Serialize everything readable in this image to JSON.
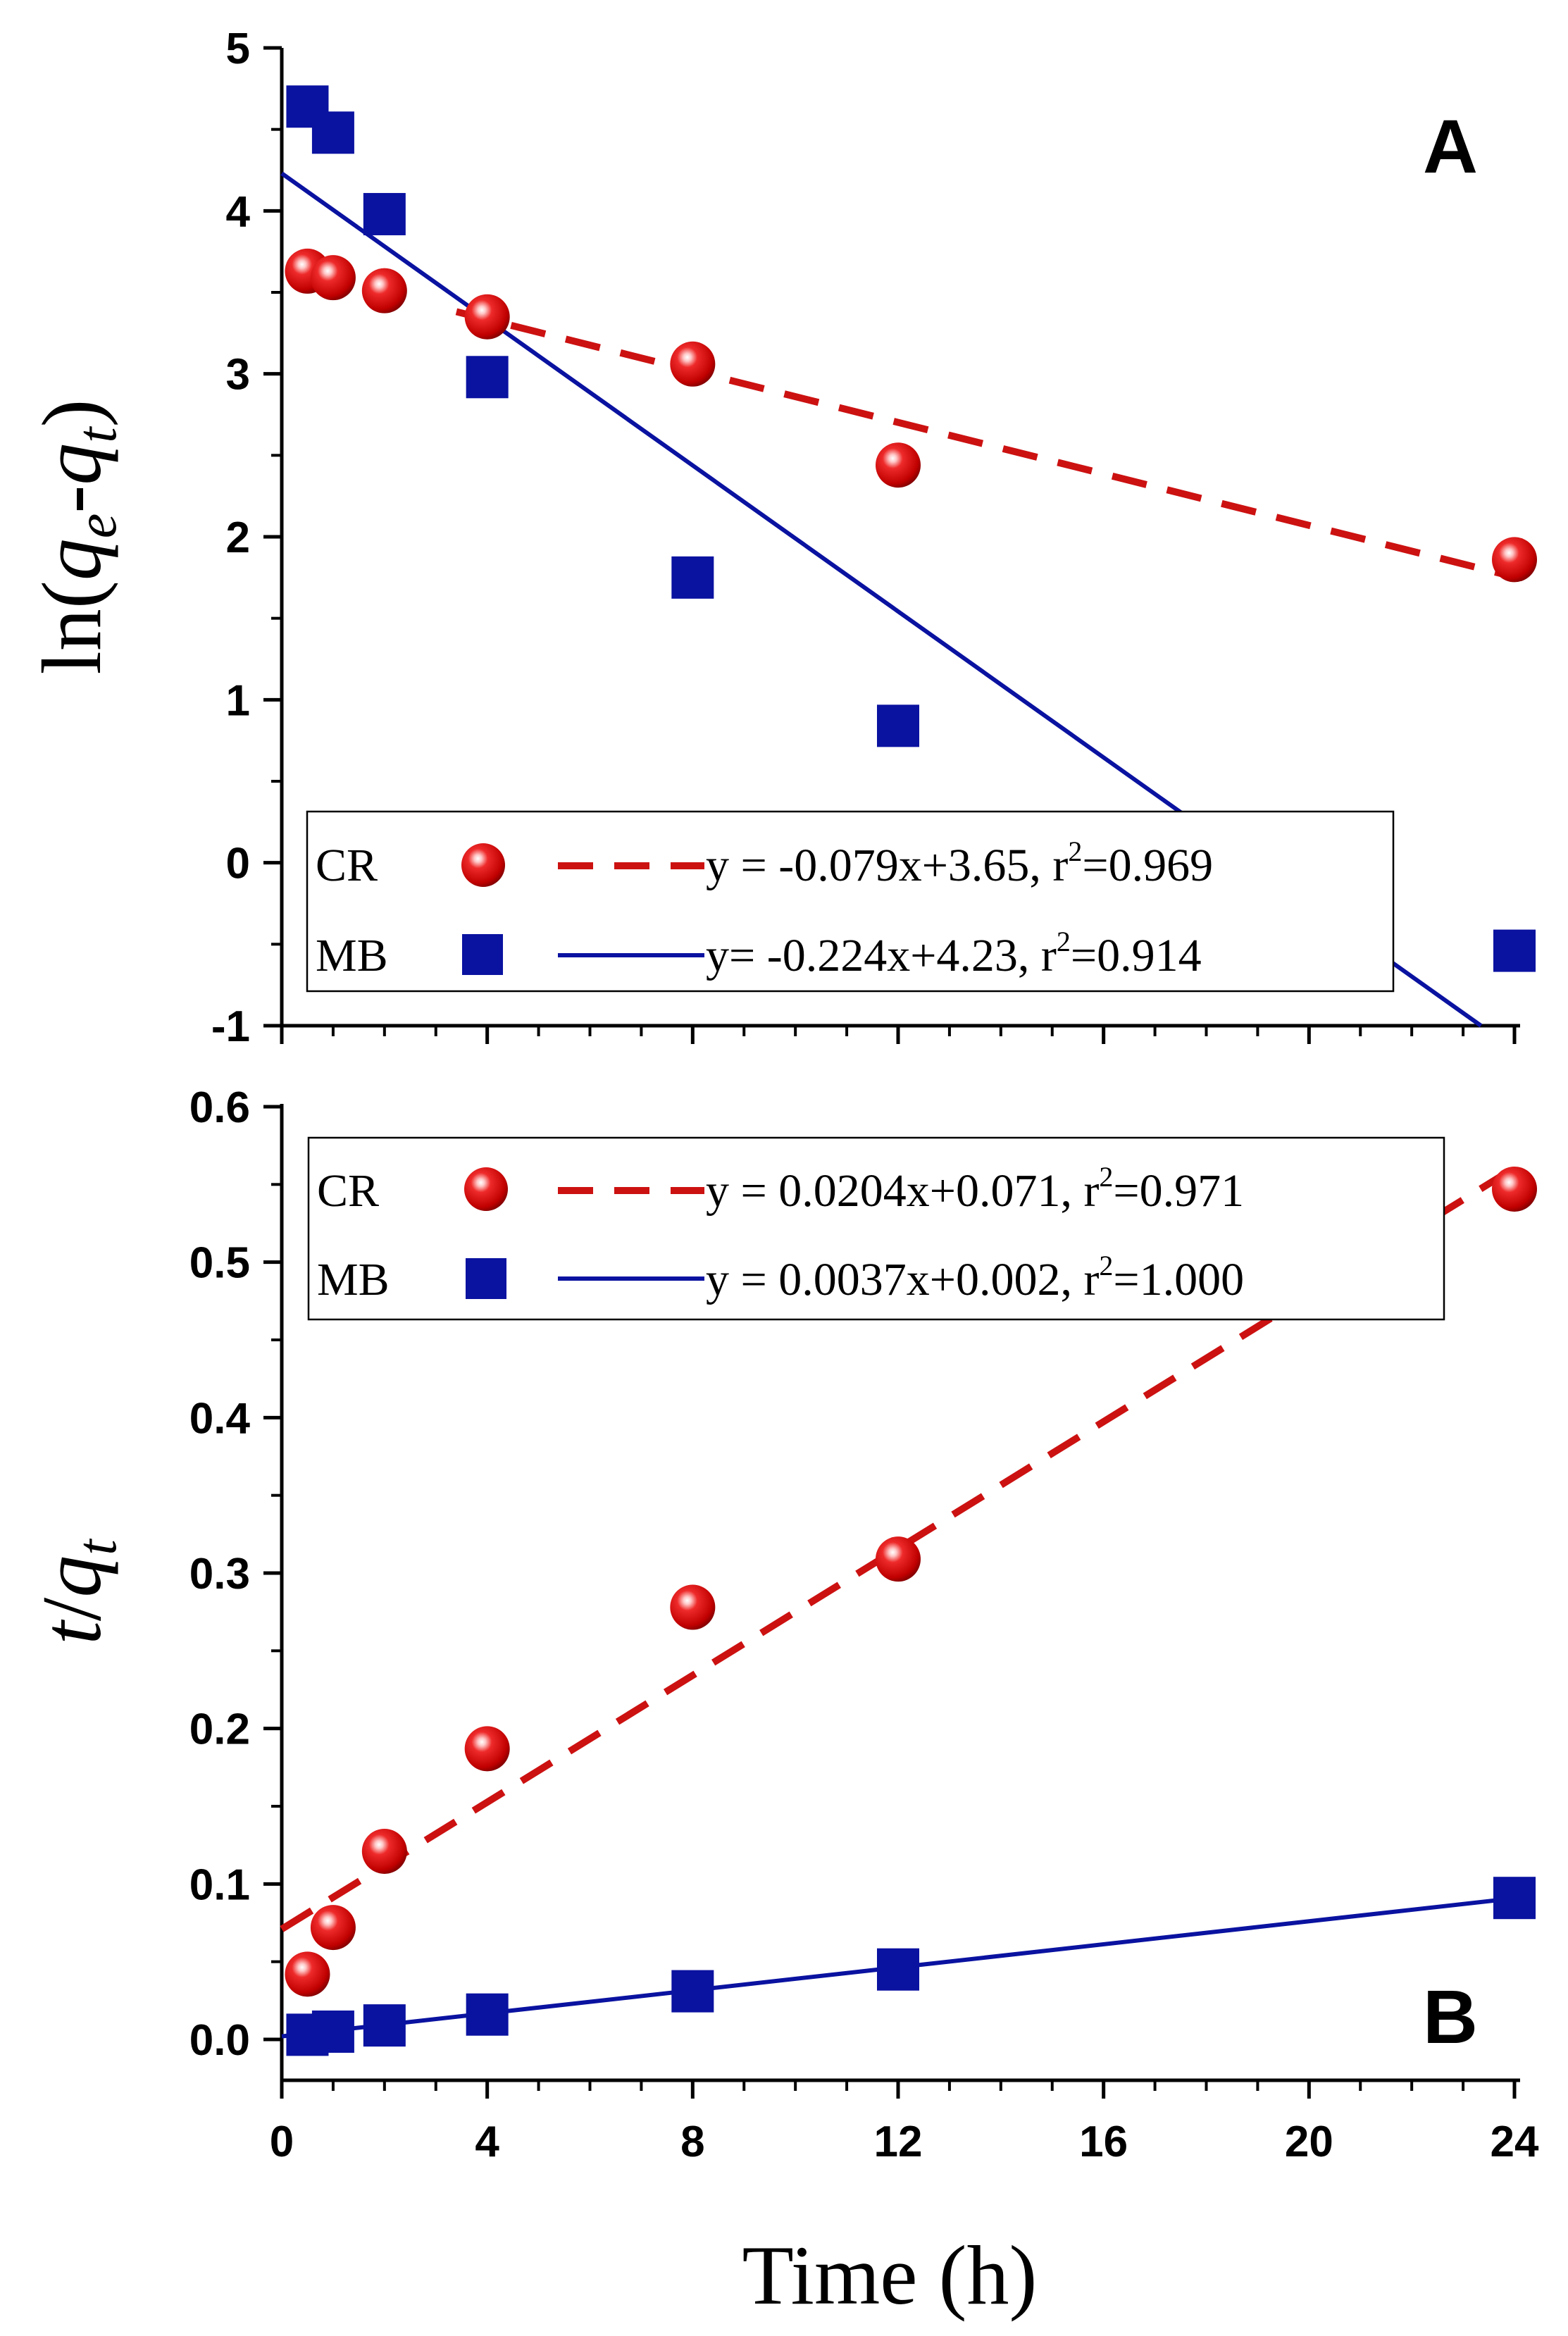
{
  "chart_data": [
    {
      "type": "scatter",
      "panel_label": "A",
      "ylabel": "ln(qe-qt)",
      "ylabel_parts": {
        "prefix": "ln(",
        "q1": "q",
        "sub1": "e",
        "dash": "-",
        "q2": "q",
        "sub2": "t",
        "suffix": ")"
      },
      "xlim": [
        0,
        24
      ],
      "ylim": [
        -1,
        5
      ],
      "yticks": [
        {
          "value": -1,
          "label": "-1"
        },
        {
          "value": 0,
          "label": "0"
        },
        {
          "value": 1,
          "label": "1"
        },
        {
          "value": 2,
          "label": "2"
        },
        {
          "value": 3,
          "label": "3"
        },
        {
          "value": 4,
          "label": "4"
        },
        {
          "value": 5,
          "label": "5"
        }
      ],
      "series": [
        {
          "name": "CR",
          "marker": "sphere",
          "color": "#cc1111",
          "line_style": "dashed",
          "fit": {
            "slope": -0.079,
            "intercept": 3.65,
            "x_range": [
              3.4,
              24
            ]
          },
          "points": [
            {
              "x": 0.5,
              "y": 3.63
            },
            {
              "x": 1,
              "y": 3.59
            },
            {
              "x": 2,
              "y": 3.51
            },
            {
              "x": 4,
              "y": 3.35
            },
            {
              "x": 8,
              "y": 3.06
            },
            {
              "x": 12,
              "y": 2.44
            },
            {
              "x": 24,
              "y": 1.86
            }
          ],
          "equation": "y = -0.079x+3.65, r",
          "r2_sup": "2",
          "r2_value": "=0.969"
        },
        {
          "name": "MB",
          "marker": "square",
          "color": "#0a12a0",
          "line_style": "solid",
          "fit": {
            "slope": -0.224,
            "intercept": 4.23,
            "x_range": [
              0,
              24
            ]
          },
          "points": [
            {
              "x": 0.5,
              "y": 4.64
            },
            {
              "x": 1,
              "y": 4.48
            },
            {
              "x": 2,
              "y": 3.98
            },
            {
              "x": 4,
              "y": 2.98
            },
            {
              "x": 8,
              "y": 1.75
            },
            {
              "x": 12,
              "y": 0.84
            },
            {
              "x": 24,
              "y": -0.54
            }
          ],
          "equation": "y= -0.224x+4.23,  r",
          "r2_sup": "2",
          "r2_value": "=0.914"
        }
      ]
    },
    {
      "type": "scatter",
      "panel_label": "B",
      "ylabel": "t/qt",
      "ylabel_parts": {
        "t": "t",
        "slash": "/",
        "q": "q",
        "sub": "t"
      },
      "xlabel": "Time (h)",
      "xlim": [
        0,
        24
      ],
      "ylim": [
        -0.02,
        0.6
      ],
      "xticks": [
        {
          "value": 0,
          "label": "0"
        },
        {
          "value": 4,
          "label": "4"
        },
        {
          "value": 8,
          "label": "8"
        },
        {
          "value": 12,
          "label": "12"
        },
        {
          "value": 16,
          "label": "16"
        },
        {
          "value": 20,
          "label": "20"
        },
        {
          "value": 24,
          "label": "24"
        }
      ],
      "yticks": [
        {
          "value": 0,
          "label": "0.0"
        },
        {
          "value": 0.1,
          "label": "0.1"
        },
        {
          "value": 0.2,
          "label": "0.2"
        },
        {
          "value": 0.3,
          "label": "0.3"
        },
        {
          "value": 0.4,
          "label": "0.4"
        },
        {
          "value": 0.5,
          "label": "0.5"
        },
        {
          "value": 0.6,
          "label": "0.6"
        }
      ],
      "series": [
        {
          "name": "CR",
          "marker": "sphere",
          "color": "#cc1111",
          "line_style": "dashed",
          "fit": {
            "slope": 0.0204,
            "intercept": 0.071,
            "x_range": [
              0,
              24
            ]
          },
          "points": [
            {
              "x": 0.5,
              "y": 0.042
            },
            {
              "x": 1,
              "y": 0.072
            },
            {
              "x": 2,
              "y": 0.121
            },
            {
              "x": 4,
              "y": 0.187
            },
            {
              "x": 8,
              "y": 0.278
            },
            {
              "x": 12,
              "y": 0.309
            },
            {
              "x": 24,
              "y": 0.547
            }
          ],
          "equation": "y = 0.0204x+0.071, r",
          "r2_sup": "2",
          "r2_value": "=0.971"
        },
        {
          "name": "MB",
          "marker": "square",
          "color": "#0a12a0",
          "line_style": "solid",
          "fit": {
            "slope": 0.0037,
            "intercept": 0.002,
            "x_range": [
              0,
              24
            ]
          },
          "points": [
            {
              "x": 0.5,
              "y": 0.003
            },
            {
              "x": 1,
              "y": 0.005
            },
            {
              "x": 2,
              "y": 0.009
            },
            {
              "x": 4,
              "y": 0.016
            },
            {
              "x": 8,
              "y": 0.031
            },
            {
              "x": 12,
              "y": 0.045
            },
            {
              "x": 24,
              "y": 0.091
            }
          ],
          "equation": "y = 0.0037x+0.002, r",
          "r2_sup": "2",
          "r2_value": "=1.000"
        }
      ]
    }
  ]
}
